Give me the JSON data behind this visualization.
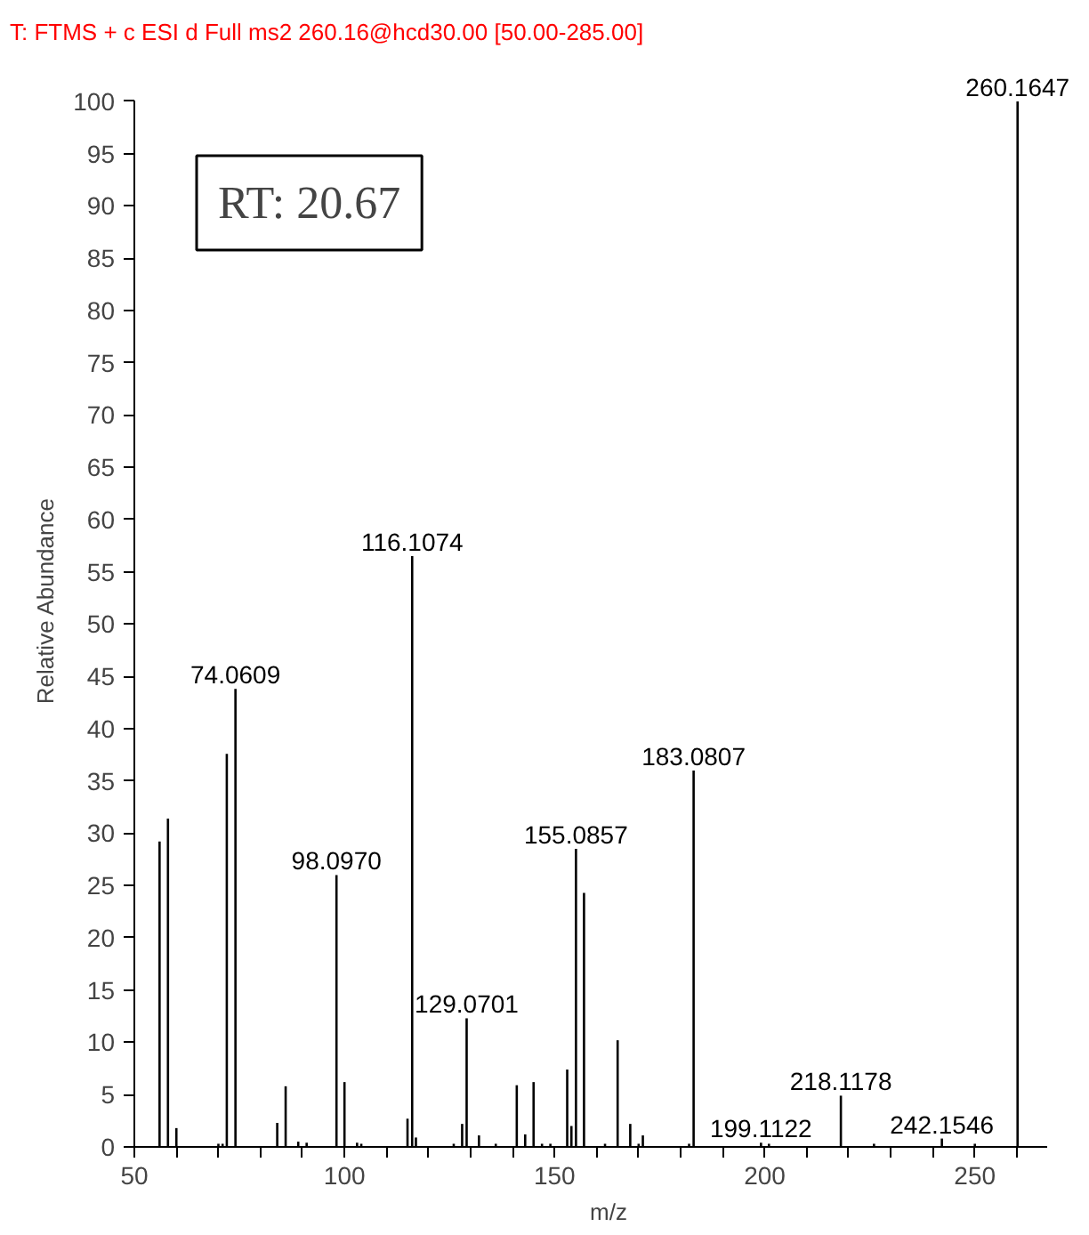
{
  "chart_data": {
    "type": "bar",
    "title": "T: FTMS + c ESI d Full ms2 260.16@hcd30.00 [50.00-285.00]",
    "xlabel": "m/z",
    "ylabel": "Relative Abundance",
    "x": [
      56,
      58,
      60,
      70,
      71,
      72,
      74.0609,
      84,
      86,
      89,
      91,
      98.097,
      100,
      103,
      104,
      115,
      116.1074,
      117,
      126,
      128,
      129.0701,
      132,
      136,
      141,
      143,
      145,
      147,
      149,
      153,
      154,
      155.0857,
      157,
      162,
      165,
      168,
      170,
      171,
      182,
      183.0807,
      199.1122,
      201,
      218.1178,
      226,
      242.1546,
      250,
      260.1647
    ],
    "values": [
      29.2,
      31.4,
      1.8,
      0.3,
      0.3,
      37.6,
      43.8,
      2.3,
      5.8,
      0.5,
      0.4,
      26,
      6.2,
      0.4,
      0.3,
      2.7,
      56.5,
      0.9,
      0.3,
      2.2,
      12.3,
      1.1,
      0.3,
      5.9,
      1.2,
      6.2,
      0.3,
      0.3,
      7.4,
      2,
      28.5,
      24.3,
      0.3,
      10.2,
      2.2,
      0.3,
      1.1,
      0.3,
      36,
      0.4,
      0.3,
      4.9,
      0.3,
      0.8,
      0.3,
      100
    ],
    "color": "#000000",
    "xlim": [
      50,
      267
    ],
    "ylim": [
      0,
      100
    ],
    "xticks": [
      50,
      {
        "value": 60,
        "label": null
      },
      {
        "value": 70,
        "label": null
      },
      {
        "value": 80,
        "label": null
      },
      {
        "value": 90,
        "label": null
      },
      100,
      {
        "value": 110,
        "label": null
      },
      {
        "value": 120,
        "label": null
      },
      {
        "value": 130,
        "label": null
      },
      {
        "value": 140,
        "label": null
      },
      150,
      {
        "value": 160,
        "label": null
      },
      {
        "value": 170,
        "label": null
      },
      {
        "value": 180,
        "label": null
      },
      {
        "value": 190,
        "label": null
      },
      200,
      {
        "value": 210,
        "label": null
      },
      {
        "value": 220,
        "label": null
      },
      {
        "value": 230,
        "label": null
      },
      {
        "value": 240,
        "label": null
      },
      250,
      {
        "value": 260,
        "label": null
      }
    ],
    "yticks": [
      0,
      5,
      10,
      15,
      20,
      25,
      30,
      35,
      40,
      45,
      50,
      55,
      60,
      65,
      70,
      75,
      80,
      85,
      90,
      95,
      100
    ],
    "grid": false,
    "annotations": [
      "RT: 20.67",
      {
        "text": "74.0609",
        "x": 74.0609,
        "y": 43.8
      },
      {
        "text": "98.0970",
        "x": 98.097,
        "y": 26
      },
      {
        "text": "116.1074",
        "x": 116.1074,
        "y": 56.5
      },
      {
        "text": "129.0701",
        "x": 129.0701,
        "y": 12.3
      },
      {
        "text": "155.0857",
        "x": 155.0857,
        "y": 28.5
      },
      {
        "text": "183.0807",
        "x": 183.0807,
        "y": 36
      },
      {
        "text": "199.1122",
        "x": 199.1122,
        "y": 0.4
      },
      {
        "text": "218.1178",
        "x": 218.1178,
        "y": 4.9
      },
      {
        "text": "242.1546",
        "x": 242.1546,
        "y": 0.8
      },
      {
        "text": "260.1647",
        "x": 260.1647,
        "y": 100
      }
    ]
  }
}
